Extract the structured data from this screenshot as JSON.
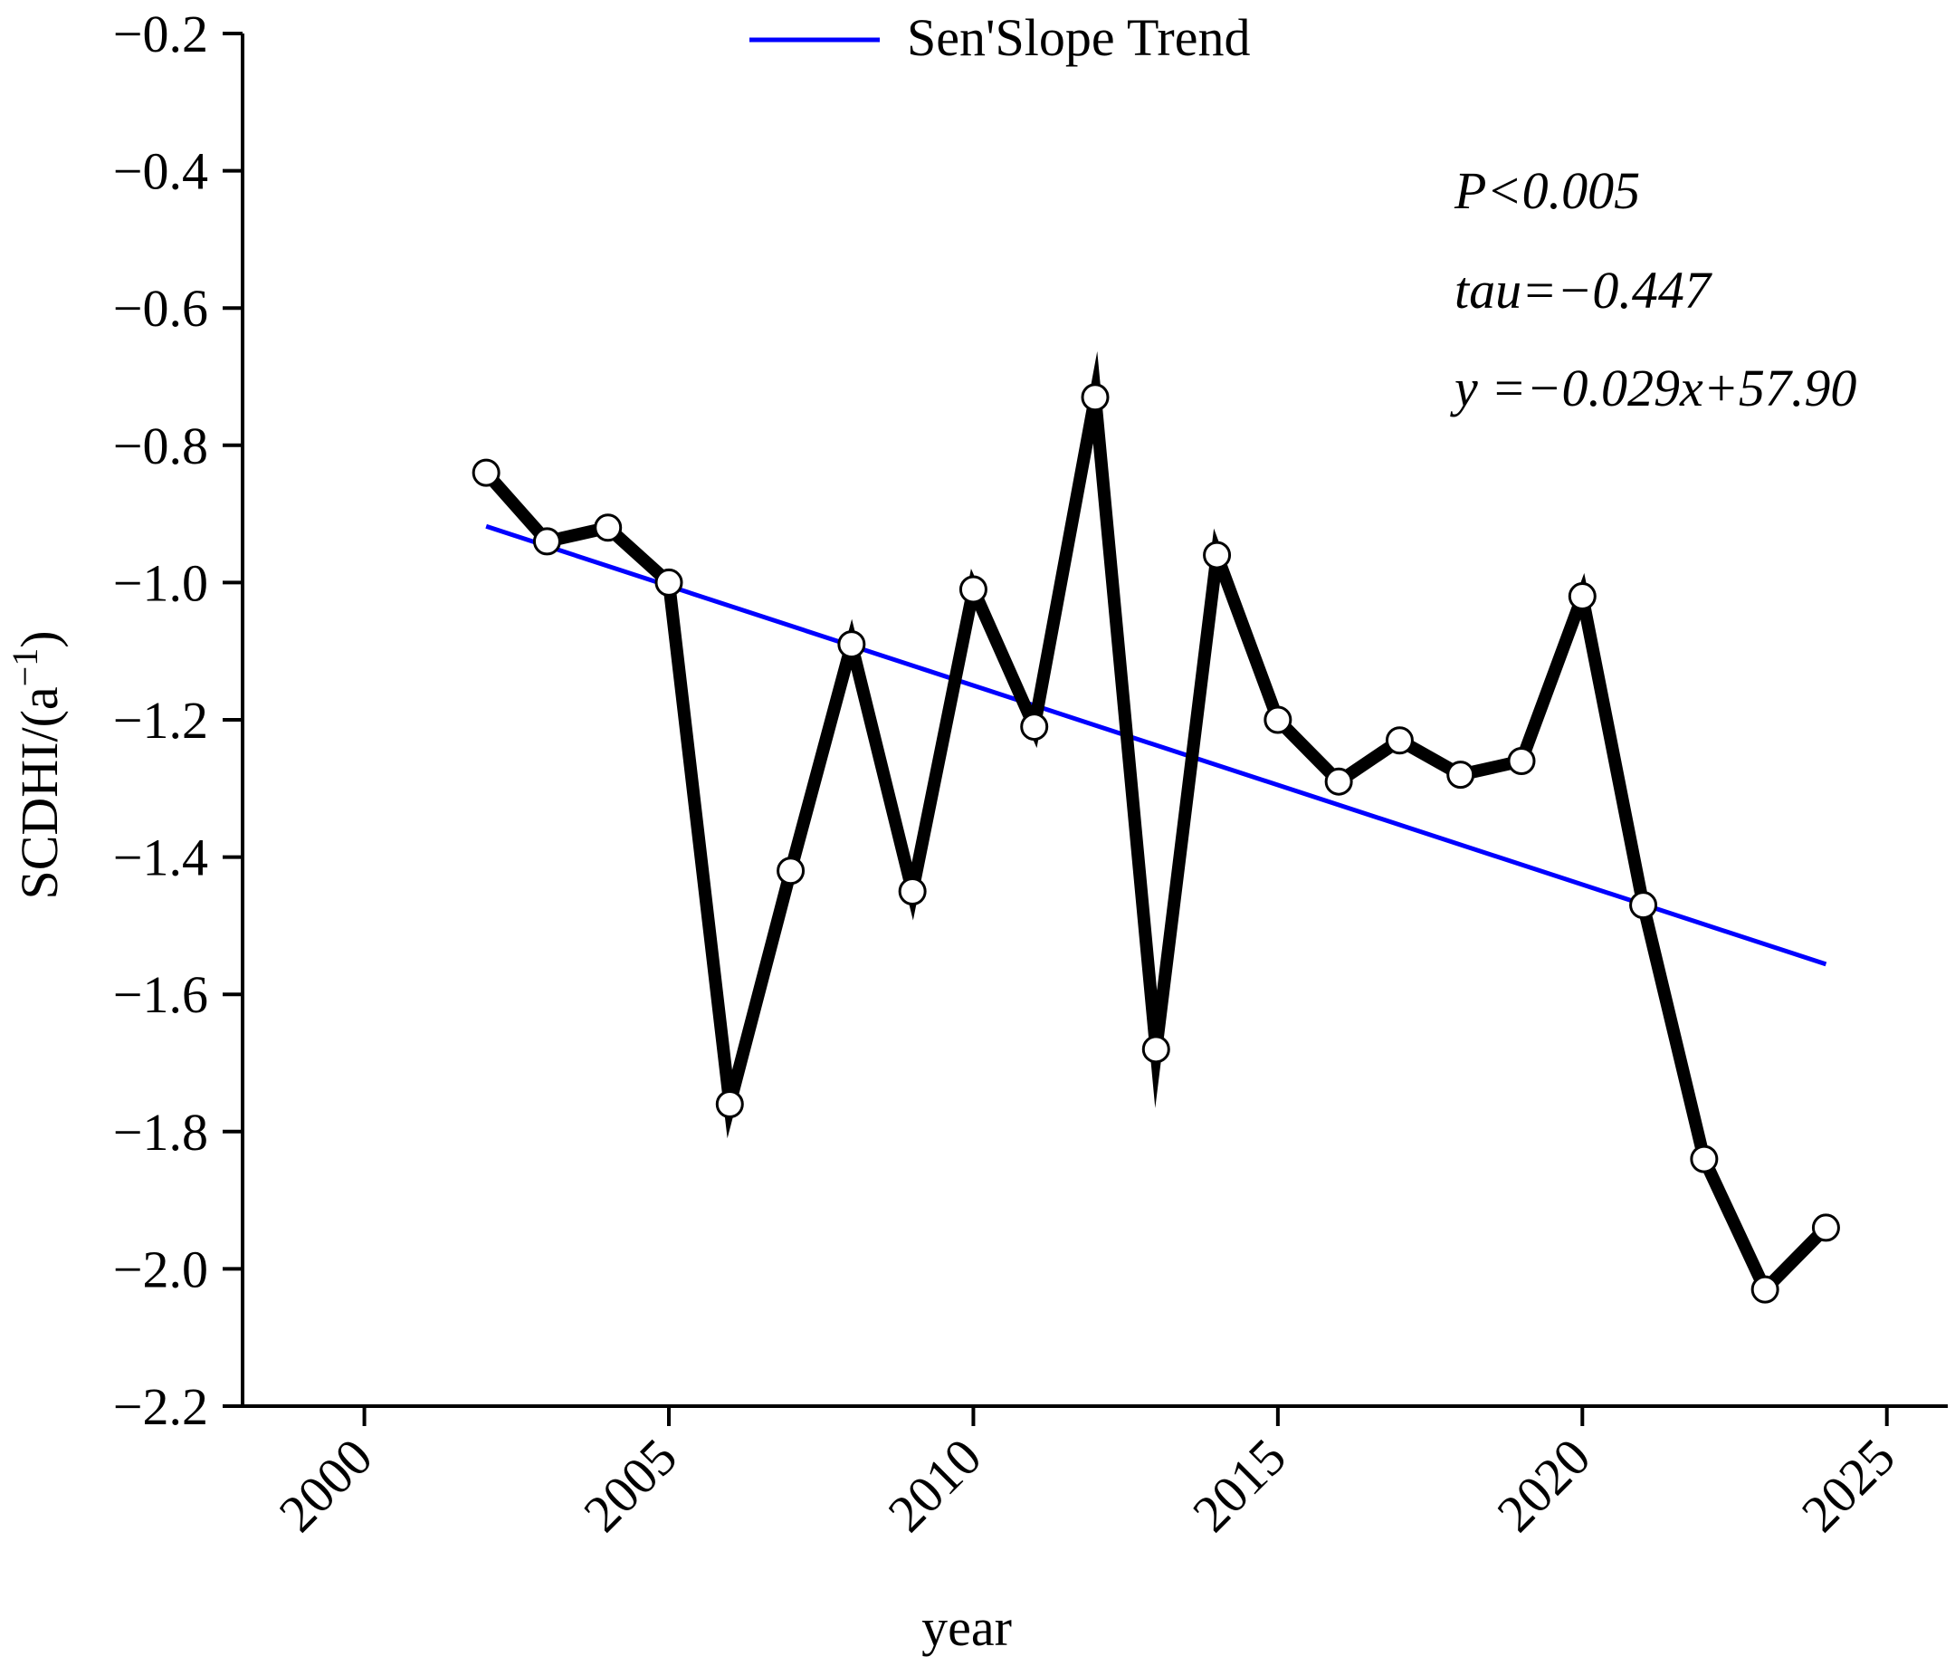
{
  "chart_data": {
    "type": "line",
    "title": "",
    "xlabel": "year",
    "ylabel": "SCDHI/(a",
    "ylabel_superscript": "−1",
    "ylabel_suffix": ")",
    "xlim": [
      1998,
      2026
    ],
    "ylim": [
      -2.2,
      -0.2
    ],
    "x_ticks": [
      2000,
      2005,
      2010,
      2015,
      2020,
      2025
    ],
    "x_tick_labels": [
      "2000",
      "2005",
      "2010",
      "2015",
      "2020",
      "2025"
    ],
    "y_ticks": [
      -0.2,
      -0.4,
      -0.6,
      -0.8,
      -1.0,
      -1.2,
      -1.4,
      -1.6,
      -1.8,
      -2.0,
      -2.2
    ],
    "y_tick_labels": [
      "−0.2",
      "−0.4",
      "−0.6",
      "−0.8",
      "−1.0",
      "−1.2",
      "−1.4",
      "−1.6",
      "−1.8",
      "−2.0",
      "−2.2"
    ],
    "grid": false,
    "series": [
      {
        "name": "SCDHI",
        "color": "#000000",
        "x": [
          2002,
          2003,
          2004,
          2005,
          2006,
          2007,
          2008,
          2009,
          2010,
          2011,
          2012,
          2013,
          2014,
          2015,
          2016,
          2017,
          2018,
          2019,
          2020,
          2021,
          2022,
          2023,
          2024
        ],
        "values": [
          -0.84,
          -0.94,
          -0.92,
          -1.0,
          -1.76,
          -1.42,
          -1.09,
          -1.45,
          -1.01,
          -1.21,
          -0.73,
          -1.68,
          -0.96,
          -1.2,
          -1.29,
          -1.23,
          -1.28,
          -1.26,
          -1.02,
          -1.47,
          -1.84,
          -2.03,
          -1.94
        ]
      },
      {
        "name": "Sen'Slope Trend",
        "color": "#0000ff",
        "x": [
          2002,
          2024
        ],
        "values": [
          -0.918,
          -1.556
        ]
      }
    ],
    "legend": {
      "position": "top-center",
      "entries": [
        {
          "label": "Sen'Slope Trend",
          "color": "#0000ff"
        }
      ]
    },
    "annotations": {
      "p_value": "P<0.005",
      "tau": "tau=−0.447",
      "equation": "y =−0.029x+57.90"
    }
  }
}
